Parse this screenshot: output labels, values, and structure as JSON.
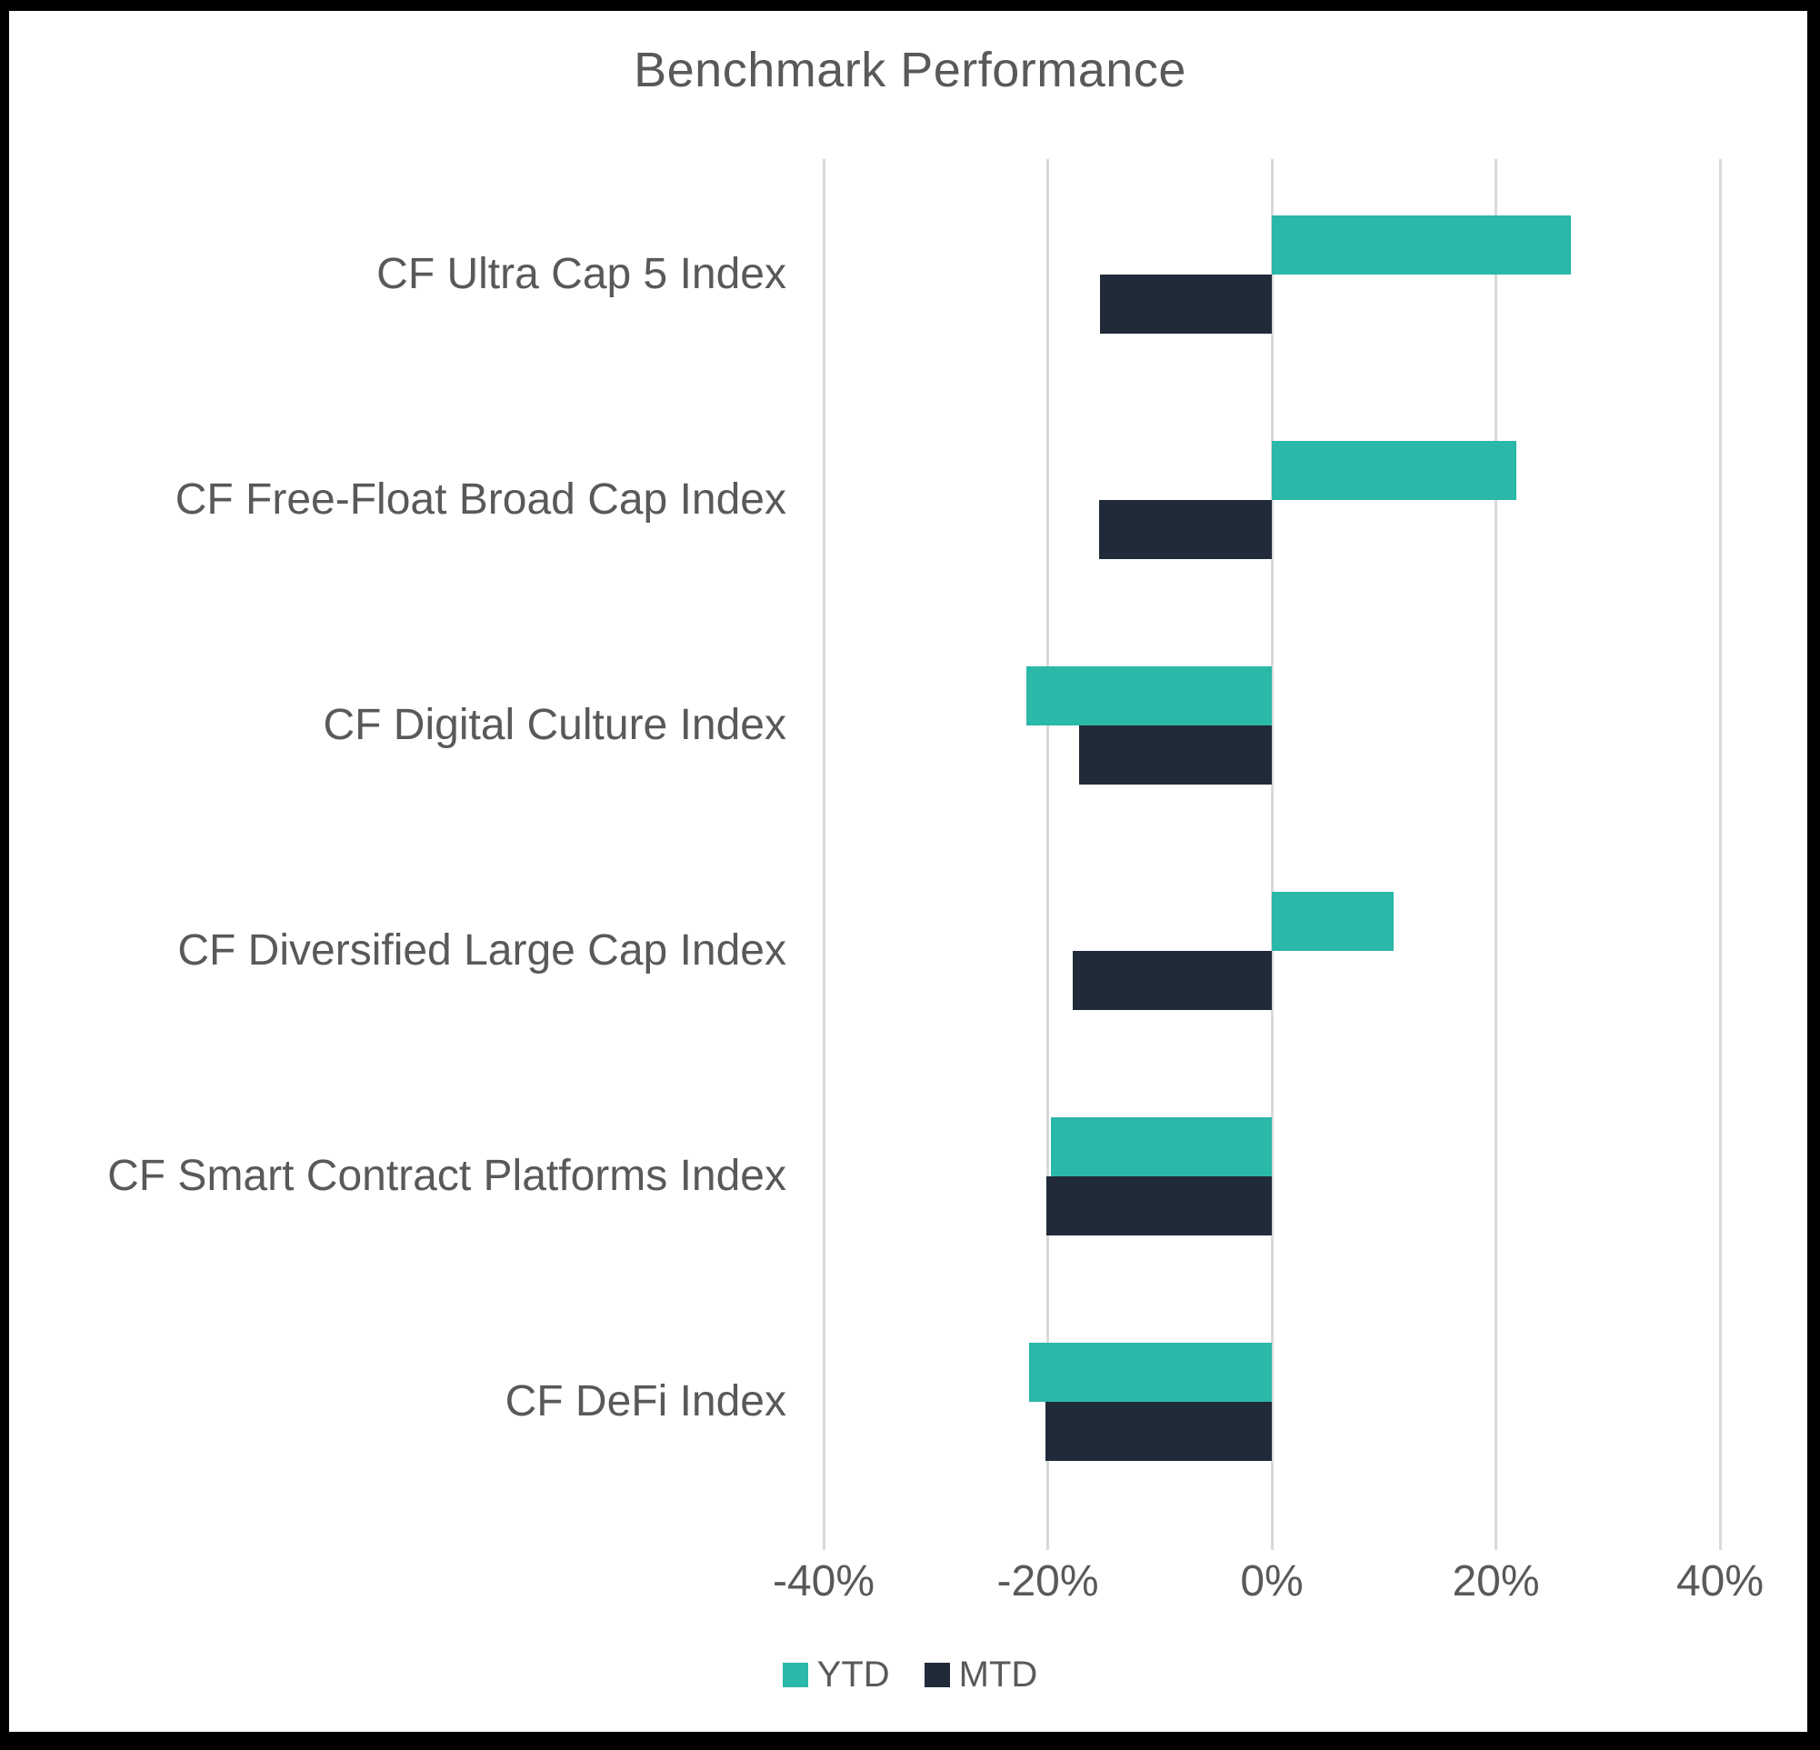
{
  "chart_data": {
    "type": "bar",
    "orientation": "horizontal",
    "title": "Benchmark Performance",
    "categories": [
      "CF Ultra Cap 5 Index",
      "CF Free-Float Broad Cap Index",
      "CF Digital Culture Index",
      "CF Diversified Large Cap Index",
      "CF Smart Contract Platforms Index",
      "CF DeFi Index"
    ],
    "series": [
      {
        "name": "YTD",
        "color": "#2ab8a8",
        "values": [
          26.7,
          21.8,
          -21.9,
          10.9,
          -19.7,
          -21.7
        ]
      },
      {
        "name": "MTD",
        "color": "#212a38",
        "values": [
          -15.3,
          -15.4,
          -17.2,
          -17.8,
          -20.1,
          -20.2
        ]
      }
    ],
    "x_axis": {
      "min": -40,
      "max": 40,
      "unit": "%",
      "ticks": [
        {
          "value": -40,
          "label": "-40%"
        },
        {
          "value": -20,
          "label": "-20%"
        },
        {
          "value": 0,
          "label": "0%"
        },
        {
          "value": 20,
          "label": "20%"
        },
        {
          "value": 40,
          "label": "40%"
        }
      ]
    },
    "grid": true,
    "legend_position": "bottom",
    "text_color": "#595959",
    "gridline_color": "#d9d9d9",
    "background_color": "#ffffff",
    "frame_color": "#000000"
  }
}
